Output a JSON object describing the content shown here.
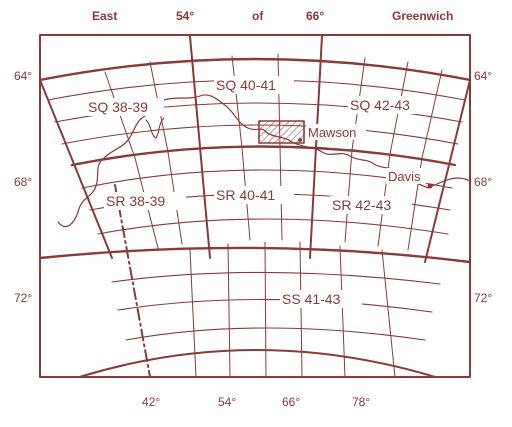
{
  "map": {
    "header": {
      "east": "East",
      "lon_54": "54°",
      "of": "of",
      "lon_66": "66°",
      "greenwich": "Greenwich"
    },
    "lat_labels": {
      "left_64": "64°",
      "left_68": "68°",
      "left_72": "72°",
      "right_64": "64°",
      "right_68": "68°",
      "right_72": "72°"
    },
    "bottom_lon_labels": {
      "lon_42": "42°",
      "lon_54": "54°",
      "lon_66": "66°",
      "lon_78": "78°"
    },
    "sheets": {
      "sq_38_39": "SQ 38-39",
      "sq_40_41": "SQ 40-41",
      "sq_42_43": "SQ 42-43",
      "sr_38_39": "SR 38-39",
      "sr_40_41": "SR 40-41",
      "sr_42_43": "SR 42-43",
      "ss_41_43": "SS 41-43"
    },
    "stations": {
      "mawson": "Mawson",
      "davis": "Davis"
    },
    "colors": {
      "ink": "#8a3a38",
      "background": "#ffffff"
    }
  }
}
